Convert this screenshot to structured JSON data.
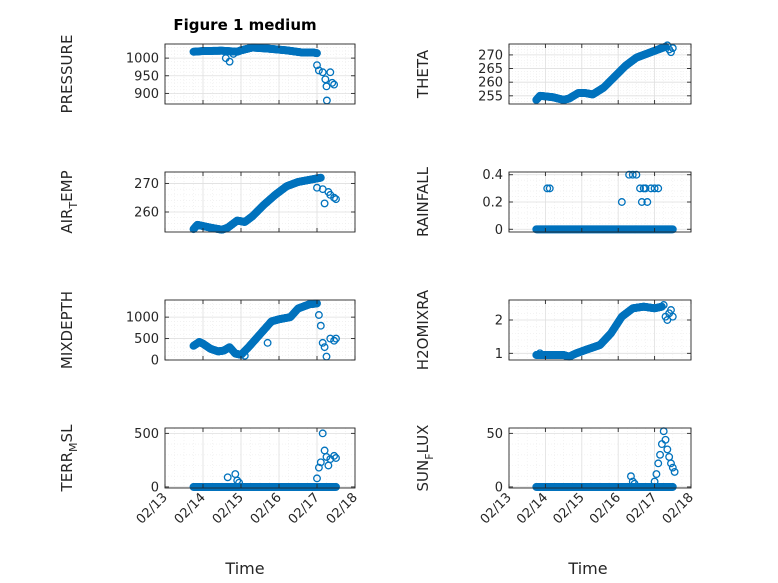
{
  "figure_title": "Figure 1 medium",
  "x_axis_label": "Time",
  "x_tick_labels": [
    "02/13",
    "02/14",
    "02/15",
    "02/16",
    "02/17",
    "02/18"
  ],
  "colors": {
    "marker": "#0072BD",
    "grid": "#dfdfdf",
    "axis": "#262626"
  },
  "chart_data": [
    {
      "type": "scatter",
      "ylabel": "PRESSURE",
      "title": "Figure 1 medium",
      "xlim": [
        0,
        5
      ],
      "ylim": [
        870,
        1040
      ],
      "yticks": [
        900,
        950,
        1000
      ],
      "x_date_origin_label": "02/13",
      "grid": true,
      "xticklabels_shown": false,
      "anchors": [
        [
          0.75,
          1018
        ],
        [
          1.0,
          1020
        ],
        [
          1.5,
          1021
        ],
        [
          1.9,
          1018
        ],
        [
          2.0,
          1022
        ],
        [
          2.3,
          1030
        ],
        [
          2.7,
          1027
        ],
        [
          3.2,
          1022
        ],
        [
          3.6,
          1016
        ],
        [
          3.9,
          1016
        ],
        [
          4.0,
          1014
        ]
      ],
      "extra_points": [
        [
          1.6,
          1000
        ],
        [
          1.7,
          990
        ],
        [
          1.8,
          1012
        ],
        [
          4.0,
          980
        ],
        [
          4.05,
          965
        ],
        [
          4.15,
          960
        ],
        [
          4.22,
          940
        ],
        [
          4.25,
          920
        ],
        [
          4.26,
          880
        ],
        [
          4.35,
          960
        ],
        [
          4.4,
          930
        ],
        [
          4.45,
          925
        ]
      ]
    },
    {
      "type": "scatter",
      "ylabel": "THETA",
      "xlim": [
        0,
        5
      ],
      "ylim": [
        252,
        274
      ],
      "yticks": [
        255,
        260,
        265,
        270
      ],
      "x_date_origin_label": "02/13",
      "grid": true,
      "xticklabels_shown": false,
      "anchors": [
        [
          0.75,
          253.5
        ],
        [
          0.85,
          255
        ],
        [
          1.2,
          254.5
        ],
        [
          1.5,
          253.5
        ],
        [
          1.65,
          254
        ],
        [
          1.9,
          256
        ],
        [
          2.1,
          256
        ],
        [
          2.3,
          255.5
        ],
        [
          2.6,
          258
        ],
        [
          2.9,
          262
        ],
        [
          3.2,
          266
        ],
        [
          3.5,
          269
        ],
        [
          3.9,
          271
        ],
        [
          4.1,
          272
        ],
        [
          4.3,
          273
        ]
      ],
      "extra_points": [
        [
          4.35,
          273.5
        ],
        [
          4.4,
          272
        ],
        [
          4.45,
          271
        ],
        [
          4.5,
          272.5
        ]
      ]
    },
    {
      "type": "scatter",
      "ylabel": "AIR_TEMP",
      "xlim": [
        0,
        5
      ],
      "ylim": [
        253,
        274
      ],
      "yticks": [
        260,
        270
      ],
      "x_date_origin_label": "02/13",
      "grid": true,
      "xticklabels_shown": false,
      "anchors": [
        [
          0.75,
          254
        ],
        [
          0.85,
          255.5
        ],
        [
          1.2,
          254.5
        ],
        [
          1.5,
          253.8
        ],
        [
          1.65,
          254.5
        ],
        [
          1.9,
          257
        ],
        [
          2.1,
          256.5
        ],
        [
          2.3,
          258.5
        ],
        [
          2.6,
          262.5
        ],
        [
          2.9,
          266
        ],
        [
          3.2,
          269
        ],
        [
          3.5,
          270.5
        ],
        [
          3.9,
          271.5
        ],
        [
          4.1,
          272
        ]
      ],
      "extra_points": [
        [
          4.0,
          268.5
        ],
        [
          4.15,
          268
        ],
        [
          4.2,
          263
        ],
        [
          4.3,
          267
        ],
        [
          4.35,
          266
        ],
        [
          4.45,
          265
        ],
        [
          4.5,
          264.5
        ]
      ]
    },
    {
      "type": "scatter",
      "ylabel": "RAINFALL",
      "xlim": [
        0,
        5
      ],
      "ylim": [
        -0.02,
        0.42
      ],
      "yticks": [
        0,
        0.2,
        0.4
      ],
      "x_date_origin_label": "02/13",
      "grid": true,
      "xticklabels_shown": false,
      "anchors": [
        [
          0.75,
          0
        ],
        [
          4.5,
          0
        ]
      ],
      "extra_points": [
        [
          1.05,
          0.3
        ],
        [
          1.12,
          0.3
        ],
        [
          3.1,
          0.2
        ],
        [
          3.3,
          0.4
        ],
        [
          3.4,
          0.4
        ],
        [
          3.5,
          0.4
        ],
        [
          3.6,
          0.3
        ],
        [
          3.65,
          0.2
        ],
        [
          3.7,
          0.3
        ],
        [
          3.75,
          0.3
        ],
        [
          3.8,
          0.2
        ],
        [
          3.9,
          0.3
        ],
        [
          4.0,
          0.3
        ],
        [
          4.1,
          0.3
        ]
      ]
    },
    {
      "type": "scatter",
      "ylabel": "MIXDEPTH",
      "xlim": [
        0,
        5
      ],
      "ylim": [
        0,
        1400
      ],
      "yticks": [
        0,
        500,
        1000
      ],
      "x_date_origin_label": "02/13",
      "grid": true,
      "xticklabels_shown": false,
      "anchors": [
        [
          0.75,
          330
        ],
        [
          0.9,
          420
        ],
        [
          1.0,
          380
        ],
        [
          1.2,
          260
        ],
        [
          1.4,
          200
        ],
        [
          1.55,
          220
        ],
        [
          1.7,
          300
        ],
        [
          1.85,
          150
        ],
        [
          2.0,
          120
        ],
        [
          2.2,
          300
        ],
        [
          2.5,
          600
        ],
        [
          2.8,
          900
        ],
        [
          3.0,
          950
        ],
        [
          3.3,
          1000
        ],
        [
          3.5,
          1200
        ],
        [
          3.8,
          1300
        ],
        [
          4.0,
          1320
        ]
      ],
      "extra_points": [
        [
          2.1,
          100
        ],
        [
          2.4,
          500
        ],
        [
          2.6,
          700
        ],
        [
          2.7,
          400
        ],
        [
          4.05,
          1050
        ],
        [
          4.1,
          800
        ],
        [
          4.15,
          400
        ],
        [
          4.2,
          300
        ],
        [
          4.25,
          80
        ],
        [
          4.35,
          500
        ],
        [
          4.45,
          450
        ],
        [
          4.5,
          500
        ]
      ]
    },
    {
      "type": "scatter",
      "ylabel": "H2OMIXRA",
      "xlim": [
        0,
        5
      ],
      "ylim": [
        0.8,
        2.6
      ],
      "yticks": [
        1,
        2
      ],
      "x_date_origin_label": "02/13",
      "grid": true,
      "xticklabels_shown": false,
      "anchors": [
        [
          0.75,
          0.95
        ],
        [
          1.5,
          0.95
        ],
        [
          1.65,
          0.9
        ],
        [
          1.85,
          1.0
        ],
        [
          2.1,
          1.1
        ],
        [
          2.5,
          1.25
        ],
        [
          2.8,
          1.6
        ],
        [
          3.1,
          2.1
        ],
        [
          3.4,
          2.35
        ],
        [
          3.7,
          2.4
        ],
        [
          4.0,
          2.35
        ],
        [
          4.2,
          2.4
        ]
      ],
      "extra_points": [
        [
          0.85,
          1.0
        ],
        [
          4.25,
          2.45
        ],
        [
          4.3,
          2.1
        ],
        [
          4.35,
          2.0
        ],
        [
          4.4,
          2.2
        ],
        [
          4.45,
          2.3
        ],
        [
          4.5,
          2.1
        ]
      ]
    },
    {
      "type": "scatter",
      "ylabel": "TERR_MSL",
      "xlim": [
        0,
        5
      ],
      "ylim": [
        -10,
        550
      ],
      "yticks": [
        0,
        500
      ],
      "x_date_origin_label": "02/13",
      "grid": true,
      "xticklabels_shown": true,
      "anchors": [
        [
          0.75,
          0
        ],
        [
          4.5,
          0
        ]
      ],
      "extra_points": [
        [
          1.65,
          90
        ],
        [
          1.85,
          120
        ],
        [
          1.9,
          60
        ],
        [
          1.95,
          40
        ],
        [
          4.0,
          80
        ],
        [
          4.05,
          180
        ],
        [
          4.1,
          230
        ],
        [
          4.15,
          500
        ],
        [
          4.2,
          340
        ],
        [
          4.25,
          280
        ],
        [
          4.3,
          200
        ],
        [
          4.35,
          260
        ],
        [
          4.45,
          290
        ],
        [
          4.5,
          270
        ]
      ]
    },
    {
      "type": "scatter",
      "ylabel": "SUN_FLUX",
      "xlim": [
        0,
        5
      ],
      "ylim": [
        -1,
        55
      ],
      "yticks": [
        0,
        50
      ],
      "x_date_origin_label": "02/13",
      "grid": true,
      "xticklabels_shown": true,
      "anchors": [
        [
          0.75,
          0
        ],
        [
          4.5,
          0
        ]
      ],
      "extra_points": [
        [
          3.35,
          10
        ],
        [
          3.4,
          5
        ],
        [
          3.45,
          3
        ],
        [
          4.0,
          5
        ],
        [
          4.05,
          12
        ],
        [
          4.1,
          22
        ],
        [
          4.15,
          30
        ],
        [
          4.2,
          40
        ],
        [
          4.25,
          52
        ],
        [
          4.3,
          44
        ],
        [
          4.35,
          35
        ],
        [
          4.4,
          28
        ],
        [
          4.45,
          22
        ],
        [
          4.5,
          18
        ],
        [
          4.55,
          14
        ]
      ]
    }
  ]
}
